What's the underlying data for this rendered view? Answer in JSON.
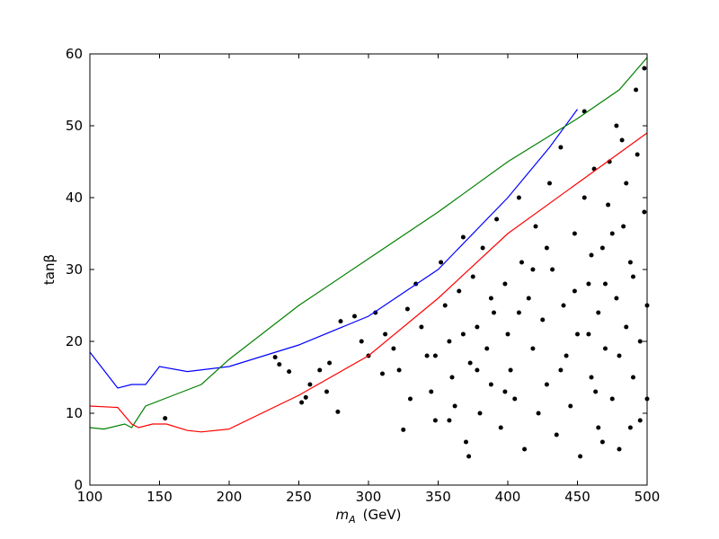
{
  "chart_data": {
    "type": "mixed",
    "xlabel": {
      "symbol": "m",
      "subscript": "A",
      "unit": "(GeV)"
    },
    "ylabel": "tanβ",
    "xlim": [
      100,
      500
    ],
    "ylim": [
      0,
      60
    ],
    "xticks": [
      100,
      150,
      200,
      250,
      300,
      350,
      400,
      450,
      500
    ],
    "yticks": [
      0,
      10,
      20,
      30,
      40,
      50,
      60
    ],
    "series": [
      {
        "type": "scatter",
        "color": "#000000",
        "x": [
          154,
          233,
          236,
          243,
          252,
          255,
          258,
          265,
          270,
          272,
          278,
          280,
          290,
          295,
          300,
          305,
          310,
          312,
          318,
          322,
          325,
          328,
          330,
          334,
          338,
          342,
          345,
          348,
          352,
          355,
          358,
          360,
          362,
          365,
          368,
          370,
          372,
          373,
          375,
          378,
          380,
          382,
          385,
          388,
          390,
          392,
          395,
          398,
          400,
          402,
          405,
          408,
          410,
          412,
          415,
          418,
          420,
          422,
          425,
          428,
          430,
          432,
          435,
          438,
          440,
          442,
          445,
          448,
          450,
          452,
          455,
          458,
          460,
          462,
          465,
          468,
          470,
          472,
          475,
          478,
          480,
          482,
          485,
          488,
          490,
          492,
          495,
          498,
          500,
          455,
          460,
          465,
          470,
          475,
          480,
          485,
          490,
          495,
          500,
          463,
          473,
          483,
          493,
          498,
          488,
          478,
          468,
          458,
          448,
          438,
          428,
          418,
          408,
          398,
          388,
          378,
          368,
          358,
          348
        ],
        "y": [
          9.3,
          17.8,
          16.8,
          15.8,
          11.5,
          12.2,
          14,
          16,
          13,
          17,
          10.2,
          22.8,
          23.5,
          20,
          18,
          24,
          15.5,
          21,
          19,
          16,
          7.7,
          24.5,
          12,
          28,
          22,
          18,
          13,
          9,
          31,
          25,
          20,
          15,
          11,
          27,
          34.5,
          6,
          4,
          17,
          29,
          22,
          10,
          33,
          19,
          14,
          24,
          37,
          8,
          28,
          21,
          16,
          12,
          40,
          31,
          5,
          26,
          19,
          36,
          10,
          23,
          14,
          42,
          30,
          7,
          47,
          25,
          18,
          11,
          35,
          21,
          4,
          52,
          28,
          15,
          44,
          8,
          33,
          19,
          39,
          12,
          26,
          5,
          48,
          22,
          31,
          15,
          55,
          9,
          38,
          25,
          40,
          32,
          24,
          28,
          35,
          18,
          42,
          29,
          20,
          12,
          13,
          45,
          36,
          46,
          58,
          8,
          50,
          6,
          21,
          27,
          16,
          33,
          30,
          24,
          13,
          26,
          16,
          21,
          9,
          18
        ]
      },
      {
        "type": "line",
        "color": "#0000ff",
        "x": [
          100,
          120,
          130,
          140,
          150,
          170,
          200,
          250,
          300,
          350,
          400,
          430,
          450
        ],
        "y": [
          18.5,
          13.5,
          14,
          14,
          16.5,
          15.8,
          16.5,
          19.5,
          23.5,
          30,
          40,
          47,
          52.3
        ]
      },
      {
        "type": "line",
        "color": "#008000",
        "x": [
          100,
          110,
          125,
          130,
          140,
          160,
          180,
          200,
          250,
          300,
          350,
          400,
          450,
          480,
          500
        ],
        "y": [
          8,
          7.8,
          8.5,
          8,
          11,
          12.5,
          14,
          17.5,
          25,
          31.5,
          38,
          45,
          51,
          55,
          59.5
        ]
      },
      {
        "type": "line",
        "color": "#ff0000",
        "x": [
          100,
          120,
          130,
          135,
          145,
          155,
          170,
          180,
          200,
          250,
          300,
          350,
          400,
          450,
          500
        ],
        "y": [
          11,
          10.8,
          8.5,
          8,
          8.5,
          8.5,
          7.6,
          7.4,
          7.8,
          12.5,
          18,
          26,
          35,
          42,
          49
        ]
      }
    ]
  }
}
